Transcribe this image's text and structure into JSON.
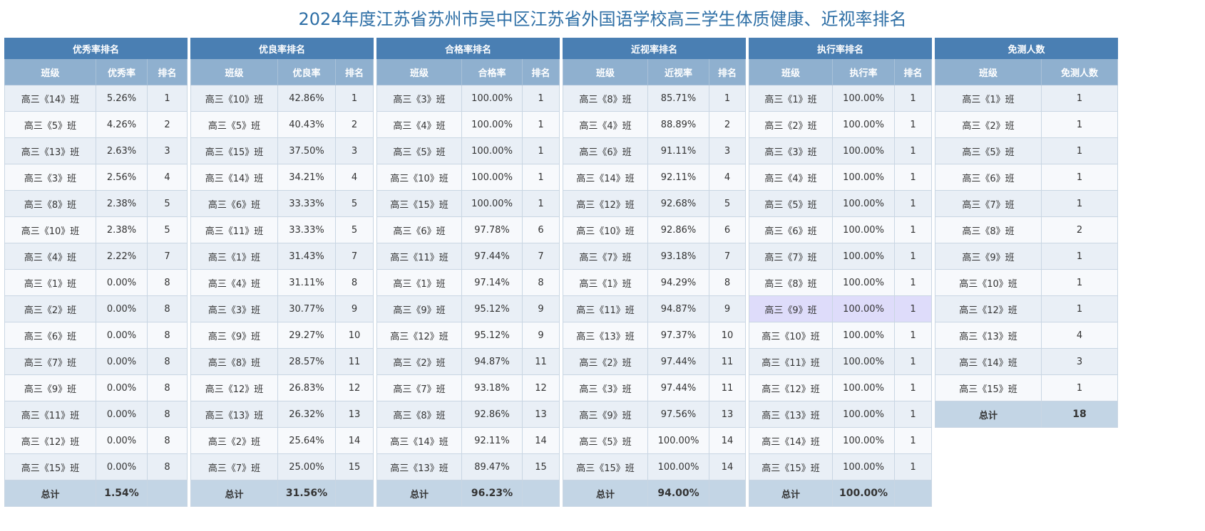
{
  "title": "2024年度江苏省苏州市吴中区江苏省外国语学校高三学生体质健康、近视率排名",
  "colors": {
    "section_header": "#4a7fb3",
    "column_header": "#8fb0cf",
    "total_row": "#c3d5e5",
    "highlight": "#dedcfa",
    "title": "#2e6fa6"
  },
  "excellent": {
    "title": "优秀率排名",
    "headers": [
      "班级",
      "优秀率",
      "排名"
    ],
    "rows": [
      [
        "高三《14》班",
        "5.26%",
        "1"
      ],
      [
        "高三《5》班",
        "4.26%",
        "2"
      ],
      [
        "高三《13》班",
        "2.63%",
        "3"
      ],
      [
        "高三《3》班",
        "2.56%",
        "4"
      ],
      [
        "高三《8》班",
        "2.38%",
        "5"
      ],
      [
        "高三《10》班",
        "2.38%",
        "5"
      ],
      [
        "高三《4》班",
        "2.22%",
        "7"
      ],
      [
        "高三《1》班",
        "0.00%",
        "8"
      ],
      [
        "高三《2》班",
        "0.00%",
        "8"
      ],
      [
        "高三《6》班",
        "0.00%",
        "8"
      ],
      [
        "高三《7》班",
        "0.00%",
        "8"
      ],
      [
        "高三《9》班",
        "0.00%",
        "8"
      ],
      [
        "高三《11》班",
        "0.00%",
        "8"
      ],
      [
        "高三《12》班",
        "0.00%",
        "8"
      ],
      [
        "高三《15》班",
        "0.00%",
        "8"
      ]
    ],
    "total": [
      "总计",
      "1.54%",
      ""
    ]
  },
  "good": {
    "title": "优良率排名",
    "headers": [
      "班级",
      "优良率",
      "排名"
    ],
    "rows": [
      [
        "高三《10》班",
        "42.86%",
        "1"
      ],
      [
        "高三《5》班",
        "40.43%",
        "2"
      ],
      [
        "高三《15》班",
        "37.50%",
        "3"
      ],
      [
        "高三《14》班",
        "34.21%",
        "4"
      ],
      [
        "高三《6》班",
        "33.33%",
        "5"
      ],
      [
        "高三《11》班",
        "33.33%",
        "5"
      ],
      [
        "高三《1》班",
        "31.43%",
        "7"
      ],
      [
        "高三《4》班",
        "31.11%",
        "8"
      ],
      [
        "高三《3》班",
        "30.77%",
        "9"
      ],
      [
        "高三《9》班",
        "29.27%",
        "10"
      ],
      [
        "高三《8》班",
        "28.57%",
        "11"
      ],
      [
        "高三《12》班",
        "26.83%",
        "12"
      ],
      [
        "高三《13》班",
        "26.32%",
        "13"
      ],
      [
        "高三《2》班",
        "25.64%",
        "14"
      ],
      [
        "高三《7》班",
        "25.00%",
        "15"
      ]
    ],
    "total": [
      "总计",
      "31.56%",
      ""
    ]
  },
  "pass": {
    "title": "合格率排名",
    "headers": [
      "班级",
      "合格率",
      "排名"
    ],
    "rows": [
      [
        "高三《3》班",
        "100.00%",
        "1"
      ],
      [
        "高三《4》班",
        "100.00%",
        "1"
      ],
      [
        "高三《5》班",
        "100.00%",
        "1"
      ],
      [
        "高三《10》班",
        "100.00%",
        "1"
      ],
      [
        "高三《15》班",
        "100.00%",
        "1"
      ],
      [
        "高三《6》班",
        "97.78%",
        "6"
      ],
      [
        "高三《11》班",
        "97.44%",
        "7"
      ],
      [
        "高三《1》班",
        "97.14%",
        "8"
      ],
      [
        "高三《9》班",
        "95.12%",
        "9"
      ],
      [
        "高三《12》班",
        "95.12%",
        "9"
      ],
      [
        "高三《2》班",
        "94.87%",
        "11"
      ],
      [
        "高三《7》班",
        "93.18%",
        "12"
      ],
      [
        "高三《8》班",
        "92.86%",
        "13"
      ],
      [
        "高三《14》班",
        "92.11%",
        "14"
      ],
      [
        "高三《13》班",
        "89.47%",
        "15"
      ]
    ],
    "total": [
      "总计",
      "96.23%",
      ""
    ]
  },
  "myopia": {
    "title": "近视率排名",
    "headers": [
      "班级",
      "近视率",
      "排名"
    ],
    "rows": [
      [
        "高三《8》班",
        "85.71%",
        "1"
      ],
      [
        "高三《4》班",
        "88.89%",
        "2"
      ],
      [
        "高三《6》班",
        "91.11%",
        "3"
      ],
      [
        "高三《14》班",
        "92.11%",
        "4"
      ],
      [
        "高三《12》班",
        "92.68%",
        "5"
      ],
      [
        "高三《10》班",
        "92.86%",
        "6"
      ],
      [
        "高三《7》班",
        "93.18%",
        "7"
      ],
      [
        "高三《1》班",
        "94.29%",
        "8"
      ],
      [
        "高三《11》班",
        "94.87%",
        "9"
      ],
      [
        "高三《13》班",
        "97.37%",
        "10"
      ],
      [
        "高三《2》班",
        "97.44%",
        "11"
      ],
      [
        "高三《3》班",
        "97.44%",
        "11"
      ],
      [
        "高三《9》班",
        "97.56%",
        "13"
      ],
      [
        "高三《5》班",
        "100.00%",
        "14"
      ],
      [
        "高三《15》班",
        "100.00%",
        "14"
      ]
    ],
    "total": [
      "总计",
      "94.00%",
      ""
    ]
  },
  "execution": {
    "title": "执行率排名",
    "headers": [
      "班级",
      "执行率",
      "排名"
    ],
    "rows": [
      [
        "高三《1》班",
        "100.00%",
        "1"
      ],
      [
        "高三《2》班",
        "100.00%",
        "1"
      ],
      [
        "高三《3》班",
        "100.00%",
        "1"
      ],
      [
        "高三《4》班",
        "100.00%",
        "1"
      ],
      [
        "高三《5》班",
        "100.00%",
        "1"
      ],
      [
        "高三《6》班",
        "100.00%",
        "1"
      ],
      [
        "高三《7》班",
        "100.00%",
        "1"
      ],
      [
        "高三《8》班",
        "100.00%",
        "1"
      ],
      [
        "高三《9》班",
        "100.00%",
        "1"
      ],
      [
        "高三《10》班",
        "100.00%",
        "1"
      ],
      [
        "高三《11》班",
        "100.00%",
        "1"
      ],
      [
        "高三《12》班",
        "100.00%",
        "1"
      ],
      [
        "高三《13》班",
        "100.00%",
        "1"
      ],
      [
        "高三《14》班",
        "100.00%",
        "1"
      ],
      [
        "高三《15》班",
        "100.00%",
        "1"
      ]
    ],
    "total": [
      "总计",
      "100.00%",
      ""
    ]
  },
  "exempt": {
    "title": "免测人数",
    "headers": [
      "班级",
      "免测人数"
    ],
    "rows": [
      [
        "高三《1》班",
        "1"
      ],
      [
        "高三《2》班",
        "1"
      ],
      [
        "高三《5》班",
        "1"
      ],
      [
        "高三《6》班",
        "1"
      ],
      [
        "高三《7》班",
        "1"
      ],
      [
        "高三《8》班",
        "2"
      ],
      [
        "高三《9》班",
        "1"
      ],
      [
        "高三《10》班",
        "1"
      ],
      [
        "高三《12》班",
        "1"
      ],
      [
        "高三《13》班",
        "4"
      ],
      [
        "高三《14》班",
        "3"
      ],
      [
        "高三《15》班",
        "1"
      ]
    ],
    "total": [
      "总计",
      "18"
    ]
  }
}
